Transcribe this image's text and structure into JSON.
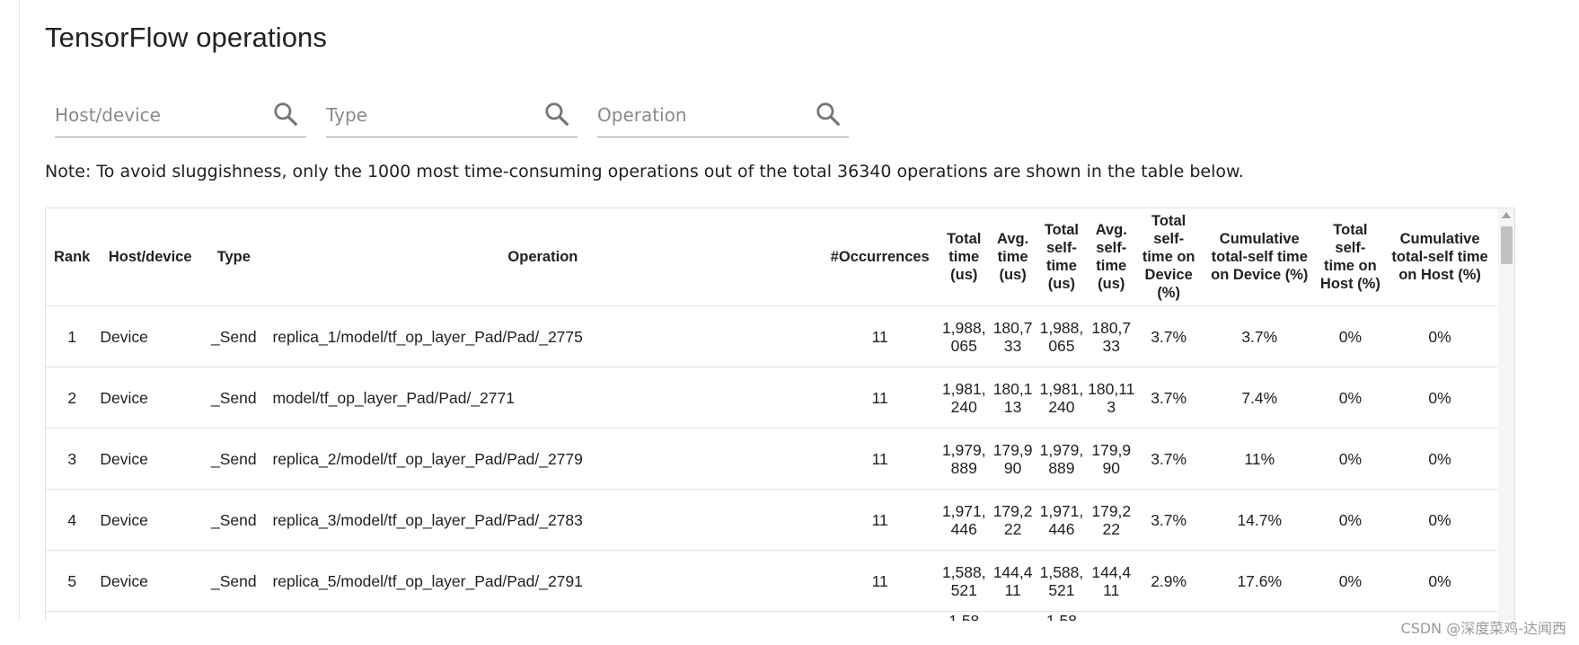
{
  "page": {
    "title": "TensorFlow operations",
    "note": "Note: To avoid sluggishness, only the 1000 most time-consuming operations out of the total 36340 operations are shown in the table below."
  },
  "filters": {
    "host_device_placeholder": "Host/device",
    "type_placeholder": "Type",
    "operation_placeholder": "Operation"
  },
  "table": {
    "headers": {
      "rank": "Rank",
      "host_device": "Host/device",
      "type": "Type",
      "operation": "Operation",
      "occurrences": "#Occurrences",
      "total_time": "Total time (us)",
      "avg_time": "Avg. time (us)",
      "total_self_time": "Total self-time (us)",
      "avg_self_time": "Avg. self-time (us)",
      "total_self_time_device_pct": "Total self-time on Device (%)",
      "cumulative_self_time_device_pct": "Cumulative total-self time on Device (%)",
      "total_self_time_host_pct": "Total self-time on Host (%)",
      "cumulative_self_time_host_pct": "Cumulative total-self time on Host (%)"
    },
    "rows": [
      {
        "rank": "1",
        "host_device": "Device",
        "type": "_Send",
        "operation": "replica_1/model/tf_op_layer_Pad/Pad/_2775",
        "occurrences": "11",
        "total_time": "1,988,065",
        "avg_time": "180,733",
        "total_self_time": "1,988,065",
        "avg_self_time": "180,733",
        "device_pct": "3.7%",
        "cum_device_pct": "3.7%",
        "host_pct": "0%",
        "cum_host_pct": "0%"
      },
      {
        "rank": "2",
        "host_device": "Device",
        "type": "_Send",
        "operation": "model/tf_op_layer_Pad/Pad/_2771",
        "occurrences": "11",
        "total_time": "1,981,240",
        "avg_time": "180,113",
        "total_self_time": "1,981,240",
        "avg_self_time": "180,113",
        "device_pct": "3.7%",
        "cum_device_pct": "7.4%",
        "host_pct": "0%",
        "cum_host_pct": "0%"
      },
      {
        "rank": "3",
        "host_device": "Device",
        "type": "_Send",
        "operation": "replica_2/model/tf_op_layer_Pad/Pad/_2779",
        "occurrences": "11",
        "total_time": "1,979,889",
        "avg_time": "179,990",
        "total_self_time": "1,979,889",
        "avg_self_time": "179,990",
        "device_pct": "3.7%",
        "cum_device_pct": "11%",
        "host_pct": "0%",
        "cum_host_pct": "0%"
      },
      {
        "rank": "4",
        "host_device": "Device",
        "type": "_Send",
        "operation": "replica_3/model/tf_op_layer_Pad/Pad/_2783",
        "occurrences": "11",
        "total_time": "1,971,446",
        "avg_time": "179,222",
        "total_self_time": "1,971,446",
        "avg_self_time": "179,222",
        "device_pct": "3.7%",
        "cum_device_pct": "14.7%",
        "host_pct": "0%",
        "cum_host_pct": "0%"
      },
      {
        "rank": "5",
        "host_device": "Device",
        "type": "_Send",
        "operation": "replica_5/model/tf_op_layer_Pad/Pad/_2791",
        "occurrences": "11",
        "total_time": "1,588,521",
        "avg_time": "144,411",
        "total_self_time": "1,588,521",
        "avg_self_time": "144,411",
        "device_pct": "2.9%",
        "cum_device_pct": "17.6%",
        "host_pct": "0%",
        "cum_host_pct": "0%"
      }
    ],
    "partial_row": {
      "total_time": "1,58",
      "total_self_time": "1,58"
    }
  },
  "watermark": "CSDN @深度菜鸡-达闻西",
  "icons": {
    "search": "search-icon",
    "scroll_up": "scroll-up-arrow-icon"
  }
}
